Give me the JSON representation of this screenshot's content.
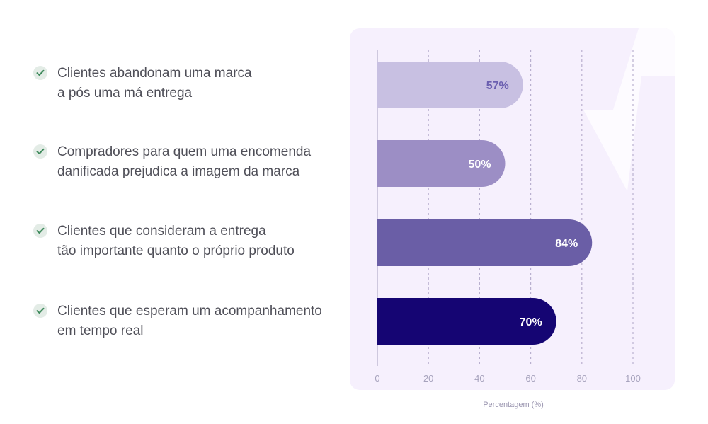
{
  "stats": [
    {
      "line1": "Clientes abandonam uma marca",
      "line2": "a pós uma má entrega"
    },
    {
      "line1": "Compradores para quem uma encomenda",
      "line2": "danificada prejudica a imagem da marca"
    },
    {
      "line1": "Clientes que consideram a entrega",
      "line2": "tão importante quanto o próprio produto"
    },
    {
      "line1": "Clientes que esperam um acompanhamento",
      "line2": "em tempo real"
    }
  ],
  "chart_data": {
    "type": "bar",
    "orientation": "horizontal",
    "categories": [
      "Clientes abandonam uma marca a pós uma má entrega",
      "Compradores para quem uma encomenda danificada prejudica a imagem da marca",
      "Clientes que consideram a entrega tão importante quanto o próprio produto",
      "Clientes que esperam um acompanhamento em tempo real"
    ],
    "values": [
      57,
      50,
      84,
      70
    ],
    "value_labels": [
      "57%",
      "50%",
      "84%",
      "70%"
    ],
    "bar_colors": [
      "#c8c0e2",
      "#9c8ec5",
      "#6a5ea6",
      "#150573"
    ],
    "label_colors": [
      "#6b5fb0",
      "#ffffff",
      "#ffffff",
      "#ffffff"
    ],
    "xlim": [
      0,
      100
    ],
    "xticks": [
      0,
      20,
      40,
      60,
      80,
      100
    ],
    "xlabel": "Percentagem (%)",
    "grid": "vertical dashed",
    "legend": "none"
  },
  "colors": {
    "panel_background": "#f6f0fd",
    "check_icon": "#3f8a5c",
    "text": "#4f4f58",
    "axis_text": "#a7a3bd"
  }
}
